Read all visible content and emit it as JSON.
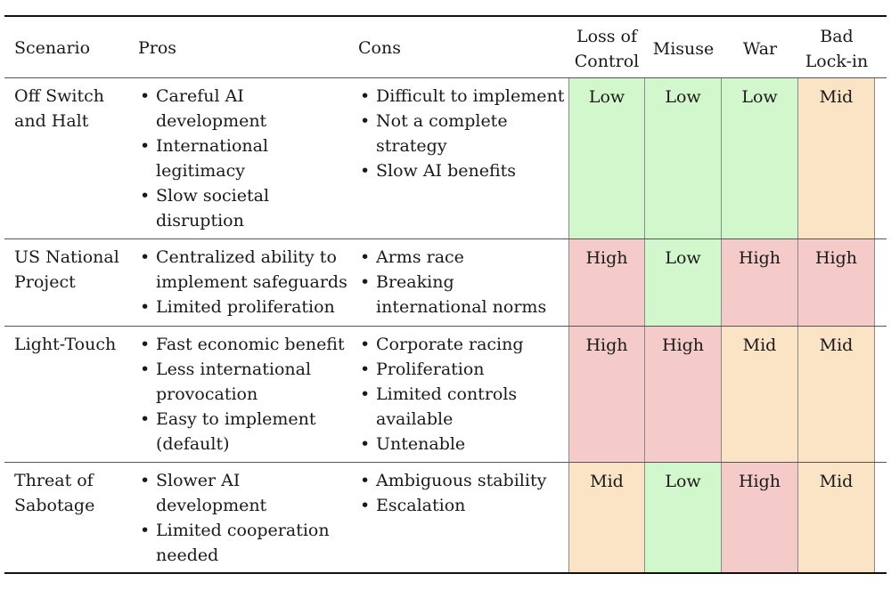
{
  "table": {
    "headers": {
      "scenario": "Scenario",
      "pros": "Pros",
      "cons": "Cons",
      "loss_of_control": [
        "Loss of",
        "Control"
      ],
      "misuse": "Misuse",
      "war": "War",
      "bad_lock_in": [
        "Bad",
        "Lock-in"
      ]
    },
    "rows": [
      {
        "scenario": [
          "Off Switch",
          "and Halt"
        ],
        "pros": [
          "Careful AI",
          "development",
          "International",
          "legitimacy",
          "Slow societal",
          "disruption"
        ],
        "cons": [
          "Difficult to implement",
          "Not a complete",
          "strategy",
          "Slow AI benefits"
        ],
        "ratings": [
          "Low",
          "Low",
          "Low",
          "Mid"
        ]
      },
      {
        "scenario": [
          "US National",
          "Project"
        ],
        "pros": [
          "Centralized ability to",
          "implement safeguards",
          "Limited proliferation"
        ],
        "cons": [
          "Arms race",
          "Breaking",
          "international norms"
        ],
        "ratings": [
          "High",
          "Low",
          "High",
          "High"
        ]
      },
      {
        "scenario": [
          "Light-Touch"
        ],
        "pros": [
          "Fast economic benefit",
          "Less international",
          "provocation",
          "Easy to implement",
          "(default)"
        ],
        "cons": [
          "Corporate racing",
          "Proliferation",
          "Limited controls",
          "available",
          "Untenable"
        ],
        "ratings": [
          "High",
          "High",
          "Mid",
          "Mid"
        ]
      },
      {
        "scenario": [
          "Threat of",
          "Sabotage"
        ],
        "pros": [
          "Slower AI",
          "development",
          "Limited cooperation",
          "needed"
        ],
        "cons": [
          "Ambiguous stability",
          "Escalation"
        ],
        "ratings": [
          "Mid",
          "Low",
          "High",
          "Mid"
        ]
      }
    ],
    "colors": {
      "low": "#d3f7cc",
      "mid": "#fbe3c5",
      "high": "#f4cbc8"
    }
  }
}
